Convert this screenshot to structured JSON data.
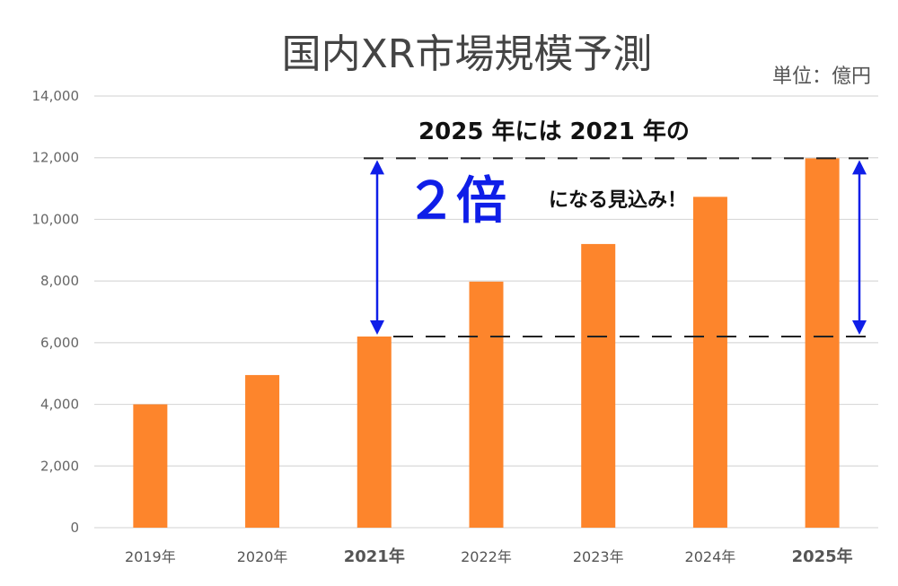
{
  "colors": {
    "bar": "#fd852c",
    "highlight": "#0f1ee8",
    "grid": "#d9d9d9",
    "dashed": "#222222"
  },
  "chart_data": {
    "type": "bar",
    "title": "国内XR市場規模予測",
    "unit_label": "単位：億円",
    "categories": [
      "2019年",
      "2020年",
      "2021年",
      "2022年",
      "2023年",
      "2024年",
      "2025年"
    ],
    "values": [
      4000,
      4950,
      6200,
      7980,
      9200,
      10730,
      11980
    ],
    "highlighted_categories": [
      "2021年",
      "2025年"
    ],
    "ylim": [
      0,
      14000
    ],
    "yticks": [
      "0",
      "2,000",
      "4,000",
      "6,000",
      "8,000",
      "10,000",
      "12,000",
      "14,000"
    ],
    "ytick_values": [
      0,
      2000,
      4000,
      6000,
      8000,
      10000,
      12000,
      14000
    ],
    "grid": true,
    "annotation": {
      "line1": "2025 年には 2021 年の",
      "emphasis": "２倍",
      "tail": "になる見込み！",
      "reference_values": [
        6200,
        11980
      ]
    }
  }
}
